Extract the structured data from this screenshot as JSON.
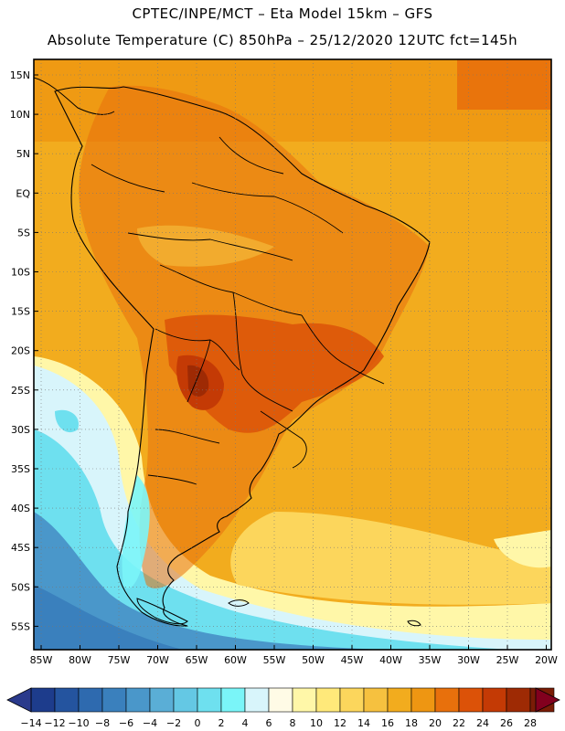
{
  "header": {
    "line1": "CPTEC/INPE/MCT –  Eta Model 15km – GFS",
    "line2": "Absolute Temperature (C) 850hPa – 25/12/2020 12UTC fct=145h"
  },
  "map": {
    "lat_labels": [
      "15N",
      "10N",
      "5N",
      "EQ",
      "5S",
      "10S",
      "15S",
      "20S",
      "25S",
      "30S",
      "35S",
      "40S",
      "45S",
      "50S",
      "55S"
    ],
    "lon_labels": [
      "85W",
      "80W",
      "75W",
      "70W",
      "65W",
      "60W",
      "55W",
      "50W",
      "45W",
      "40W",
      "35W",
      "30W",
      "25W",
      "20W"
    ]
  },
  "colorbar": {
    "labels": [
      "-14",
      "-12",
      "-10",
      "-8",
      "-6",
      "-4",
      "-2",
      "0",
      "2",
      "4",
      "6",
      "8",
      "10",
      "12",
      "14",
      "16",
      "18",
      "20",
      "22",
      "24",
      "26",
      "28"
    ],
    "colors": [
      "#1d3c8c",
      "#24549f",
      "#2e6aaf",
      "#3a80bd",
      "#4a97ca",
      "#5aaed6",
      "#64c8e4",
      "#6ee0ef",
      "#7af5f8",
      "#d8f5fb",
      "#fffbe6",
      "#fff7a8",
      "#ffe97a",
      "#fcd65c",
      "#f6c13f",
      "#f2ac1e",
      "#ee9612",
      "#e8700c",
      "#dc5208",
      "#c43a05",
      "#9e2a04",
      "#7a1c06"
    ],
    "under_color": "#2a3a8c",
    "over_color": "#82001e"
  }
}
